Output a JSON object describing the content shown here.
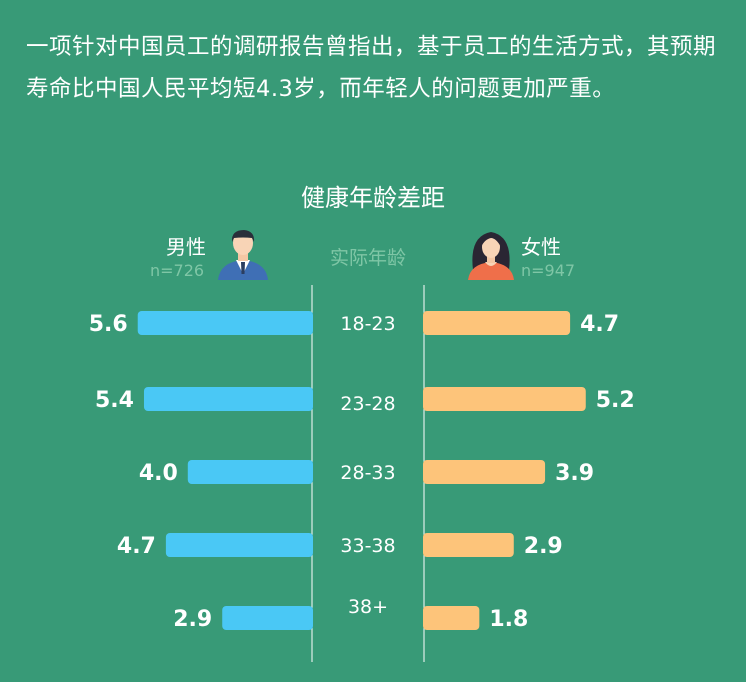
{
  "intro_text": "一项针对中国员工的调研报告曾指出，基于员工的生活方式，其预期寿命比中国人民平均短4.3岁，而年轻人的问题更加严重。",
  "icons": {
    "male": "man-avatar-icon",
    "female": "woman-avatar-icon"
  },
  "colors": {
    "background": "#389a77",
    "male_bar": "#4ac8f5",
    "female_bar": "#fdc47a",
    "muted_text": "#7fc6a6"
  },
  "chart_data": {
    "type": "bar",
    "orientation": "horizontal-butterfly",
    "title": "健康年龄差距",
    "center_label": "实际年龄",
    "categories": [
      "18-23",
      "23-28",
      "28-33",
      "33-38",
      "38+"
    ],
    "series": [
      {
        "name": "男性",
        "n_label": "n=726",
        "side": "left",
        "values": [
          5.6,
          5.4,
          4.0,
          4.7,
          2.9
        ]
      },
      {
        "name": "女性",
        "n_label": "n=947",
        "side": "right",
        "values": [
          4.7,
          5.2,
          3.9,
          2.9,
          1.8
        ]
      }
    ],
    "value_format": "one-decimal",
    "grid": false,
    "legend": "top"
  }
}
